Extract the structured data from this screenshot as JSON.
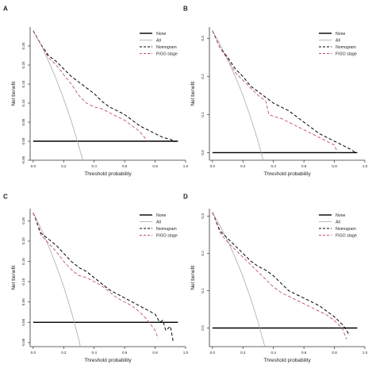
{
  "figure": {
    "background": "#ffffff"
  },
  "chart_data": [
    {
      "type": "line",
      "panel": "A",
      "xlabel": "Threshold probability",
      "ylabel": "Net benefit",
      "xlim": [
        -0.02,
        1.0
      ],
      "ylim": [
        -0.05,
        0.3
      ],
      "xticks": [
        0.0,
        0.2,
        0.4,
        0.6,
        0.8,
        1.0
      ],
      "xtick_labels": [
        "0.0",
        "0.2",
        "0.4",
        "0.6",
        "0.8",
        "1.0"
      ],
      "yticks": [
        -0.05,
        0.0,
        0.05,
        0.1,
        0.15,
        0.2,
        0.25
      ],
      "ytick_labels": [
        "-0.05",
        "0.00",
        "0.05",
        "0.10",
        "0.15",
        "0.20",
        "0.25"
      ],
      "legend_position": "top-right",
      "series": [
        {
          "name": "None",
          "color": "#000000",
          "dash": "solid",
          "width": 1.4,
          "x": [
            0.0,
            0.95
          ],
          "y": [
            0.0,
            0.0
          ]
        },
        {
          "name": "All",
          "color": "#aaaaaa",
          "dash": "solid",
          "width": 0.8,
          "x": [
            0.0,
            0.05,
            0.1,
            0.15,
            0.2,
            0.25,
            0.3,
            0.34
          ],
          "y": [
            0.29,
            0.254,
            0.211,
            0.164,
            0.111,
            0.053,
            -0.014,
            -0.07
          ]
        },
        {
          "name": "Nomogram",
          "color": "#000000",
          "dash": "dashed",
          "width": 1.0,
          "x": [
            0.0,
            0.05,
            0.1,
            0.15,
            0.2,
            0.25,
            0.3,
            0.35,
            0.4,
            0.45,
            0.5,
            0.55,
            0.6,
            0.65,
            0.7,
            0.75,
            0.8,
            0.85,
            0.9,
            0.93
          ],
          "y": [
            0.29,
            0.255,
            0.225,
            0.21,
            0.19,
            0.17,
            0.155,
            0.14,
            0.125,
            0.105,
            0.09,
            0.08,
            0.07,
            0.055,
            0.04,
            0.03,
            0.02,
            0.01,
            0.005,
            -0.002
          ]
        },
        {
          "name": "FIGO stage",
          "color": "#c0506b",
          "dash": "dashed",
          "width": 0.9,
          "x": [
            0.0,
            0.05,
            0.1,
            0.15,
            0.2,
            0.25,
            0.3,
            0.35,
            0.4,
            0.45,
            0.5,
            0.55,
            0.6,
            0.65,
            0.7,
            0.73,
            0.75
          ],
          "y": [
            0.29,
            0.255,
            0.22,
            0.2,
            0.175,
            0.15,
            0.12,
            0.1,
            0.09,
            0.085,
            0.075,
            0.065,
            0.055,
            0.04,
            0.025,
            0.01,
            0.0
          ]
        }
      ]
    },
    {
      "type": "line",
      "panel": "B",
      "xlabel": "Threshold probability",
      "ylabel": "Net benefit",
      "xlim": [
        -0.02,
        1.0
      ],
      "ylim": [
        -0.02,
        0.33
      ],
      "xticks": [
        0.0,
        0.2,
        0.4,
        0.6,
        0.8,
        1.0
      ],
      "xtick_labels": [
        "0.0",
        "0.2",
        "0.4",
        "0.6",
        "0.8",
        "1.0"
      ],
      "yticks": [
        0.0,
        0.1,
        0.2,
        0.3
      ],
      "ytick_labels": [
        "0.0",
        "0.1",
        "0.2",
        "0.3"
      ],
      "legend_position": "top-right",
      "series": [
        {
          "name": "None",
          "color": "#000000",
          "dash": "solid",
          "width": 1.4,
          "x": [
            0.0,
            0.95
          ],
          "y": [
            0.0,
            0.0
          ]
        },
        {
          "name": "All",
          "color": "#aaaaaa",
          "dash": "solid",
          "width": 0.8,
          "x": [
            0.0,
            0.05,
            0.1,
            0.15,
            0.2,
            0.25,
            0.3,
            0.35,
            0.38
          ],
          "y": [
            0.32,
            0.284,
            0.244,
            0.2,
            0.15,
            0.093,
            0.029,
            -0.046,
            -0.1
          ]
        },
        {
          "name": "Nomogram",
          "color": "#000000",
          "dash": "dashed",
          "width": 1.0,
          "x": [
            0.0,
            0.05,
            0.1,
            0.15,
            0.2,
            0.25,
            0.3,
            0.35,
            0.4,
            0.45,
            0.5,
            0.55,
            0.6,
            0.65,
            0.7,
            0.75,
            0.8,
            0.85,
            0.9,
            0.94
          ],
          "y": [
            0.32,
            0.275,
            0.25,
            0.22,
            0.2,
            0.175,
            0.16,
            0.145,
            0.13,
            0.12,
            0.11,
            0.095,
            0.08,
            0.065,
            0.05,
            0.04,
            0.03,
            0.02,
            0.01,
            0.0
          ]
        },
        {
          "name": "FIGO stage",
          "color": "#c0506b",
          "dash": "dashed",
          "width": 0.9,
          "x": [
            0.0,
            0.05,
            0.1,
            0.15,
            0.2,
            0.25,
            0.3,
            0.35,
            0.37,
            0.4,
            0.45,
            0.5,
            0.55,
            0.6,
            0.65,
            0.7,
            0.75,
            0.8,
            0.82
          ],
          "y": [
            0.32,
            0.275,
            0.245,
            0.21,
            0.19,
            0.17,
            0.15,
            0.135,
            0.1,
            0.095,
            0.09,
            0.08,
            0.07,
            0.06,
            0.05,
            0.04,
            0.03,
            0.02,
            0.0
          ]
        }
      ]
    },
    {
      "type": "line",
      "panel": "C",
      "xlabel": "Threshold probability",
      "ylabel": "Net benefit",
      "xlim": [
        -0.02,
        1.0
      ],
      "ylim": [
        -0.06,
        0.28
      ],
      "xticks": [
        0.0,
        0.2,
        0.4,
        0.6,
        0.8,
        1.0
      ],
      "xtick_labels": [
        "0.0",
        "0.2",
        "0.4",
        "0.6",
        "0.8",
        "1.0"
      ],
      "yticks": [
        -0.05,
        0.0,
        0.05,
        0.1,
        0.15,
        0.2,
        0.25
      ],
      "ytick_labels": [
        "-0.05",
        "0.00",
        "0.05",
        "0.10",
        "0.15",
        "0.20",
        "0.25"
      ],
      "legend_position": "top-right",
      "series": [
        {
          "name": "None",
          "color": "#000000",
          "dash": "solid",
          "width": 1.4,
          "x": [
            0.0,
            0.95
          ],
          "y": [
            0.0,
            0.0
          ]
        },
        {
          "name": "All",
          "color": "#aaaaaa",
          "dash": "solid",
          "width": 0.8,
          "x": [
            0.0,
            0.05,
            0.1,
            0.15,
            0.2,
            0.25,
            0.3,
            0.32
          ],
          "y": [
            0.27,
            0.232,
            0.189,
            0.141,
            0.088,
            0.027,
            -0.043,
            -0.08
          ]
        },
        {
          "name": "Nomogram",
          "color": "#000000",
          "dash": "dashed",
          "width": 1.0,
          "x": [
            0.0,
            0.05,
            0.1,
            0.15,
            0.2,
            0.25,
            0.3,
            0.35,
            0.4,
            0.45,
            0.5,
            0.55,
            0.6,
            0.65,
            0.7,
            0.75,
            0.8,
            0.83,
            0.85,
            0.87,
            0.9,
            0.92
          ],
          "y": [
            0.27,
            0.22,
            0.205,
            0.19,
            0.17,
            0.15,
            0.135,
            0.125,
            0.11,
            0.095,
            0.08,
            0.07,
            0.06,
            0.05,
            0.04,
            0.03,
            0.02,
            0.0,
            0.005,
            -0.02,
            -0.01,
            -0.05
          ]
        },
        {
          "name": "FIGO stage",
          "color": "#c0506b",
          "dash": "dashed",
          "width": 0.9,
          "x": [
            0.0,
            0.05,
            0.1,
            0.15,
            0.2,
            0.25,
            0.3,
            0.35,
            0.4,
            0.45,
            0.5,
            0.55,
            0.6,
            0.65,
            0.7,
            0.75,
            0.8,
            0.82
          ],
          "y": [
            0.27,
            0.215,
            0.195,
            0.175,
            0.15,
            0.13,
            0.115,
            0.11,
            0.1,
            0.09,
            0.075,
            0.06,
            0.05,
            0.04,
            0.025,
            0.005,
            -0.02,
            -0.04
          ]
        }
      ]
    },
    {
      "type": "line",
      "panel": "D",
      "xlabel": "Threshold probability",
      "ylabel": "Net benefit",
      "xlim": [
        -0.02,
        1.0
      ],
      "ylim": [
        -0.05,
        0.32
      ],
      "xticks": [
        0.0,
        0.2,
        0.4,
        0.6,
        0.8,
        1.0
      ],
      "xtick_labels": [
        "0.0",
        "0.2",
        "0.4",
        "0.6",
        "0.8",
        "1.0"
      ],
      "yticks": [
        0.0,
        0.1,
        0.2,
        0.3
      ],
      "ytick_labels": [
        "0.0",
        "0.1",
        "0.2",
        "0.3"
      ],
      "legend_position": "top-right",
      "series": [
        {
          "name": "None",
          "color": "#000000",
          "dash": "solid",
          "width": 1.4,
          "x": [
            0.0,
            0.95
          ],
          "y": [
            0.0,
            0.0
          ]
        },
        {
          "name": "All",
          "color": "#aaaaaa",
          "dash": "solid",
          "width": 0.8,
          "x": [
            0.0,
            0.05,
            0.1,
            0.15,
            0.2,
            0.25,
            0.3,
            0.35,
            0.37
          ],
          "y": [
            0.31,
            0.273,
            0.234,
            0.188,
            0.138,
            0.08,
            0.015,
            -0.06,
            -0.09
          ]
        },
        {
          "name": "Nomogram",
          "color": "#000000",
          "dash": "dashed",
          "width": 1.0,
          "x": [
            0.0,
            0.05,
            0.1,
            0.15,
            0.2,
            0.25,
            0.3,
            0.35,
            0.4,
            0.45,
            0.5,
            0.55,
            0.6,
            0.65,
            0.7,
            0.75,
            0.8,
            0.85,
            0.87,
            0.9
          ],
          "y": [
            0.31,
            0.26,
            0.24,
            0.22,
            0.2,
            0.18,
            0.165,
            0.155,
            0.14,
            0.12,
            0.1,
            0.09,
            0.08,
            0.07,
            0.06,
            0.045,
            0.03,
            0.01,
            0.0,
            -0.02
          ]
        },
        {
          "name": "FIGO stage",
          "color": "#c0506b",
          "dash": "dashed",
          "width": 0.9,
          "x": [
            0.0,
            0.05,
            0.1,
            0.15,
            0.2,
            0.25,
            0.3,
            0.35,
            0.4,
            0.45,
            0.5,
            0.55,
            0.6,
            0.65,
            0.7,
            0.75,
            0.8,
            0.85,
            0.88
          ],
          "y": [
            0.31,
            0.255,
            0.23,
            0.21,
            0.19,
            0.17,
            0.15,
            0.13,
            0.11,
            0.095,
            0.085,
            0.075,
            0.065,
            0.055,
            0.045,
            0.035,
            0.02,
            0.0,
            -0.03
          ]
        }
      ]
    }
  ]
}
